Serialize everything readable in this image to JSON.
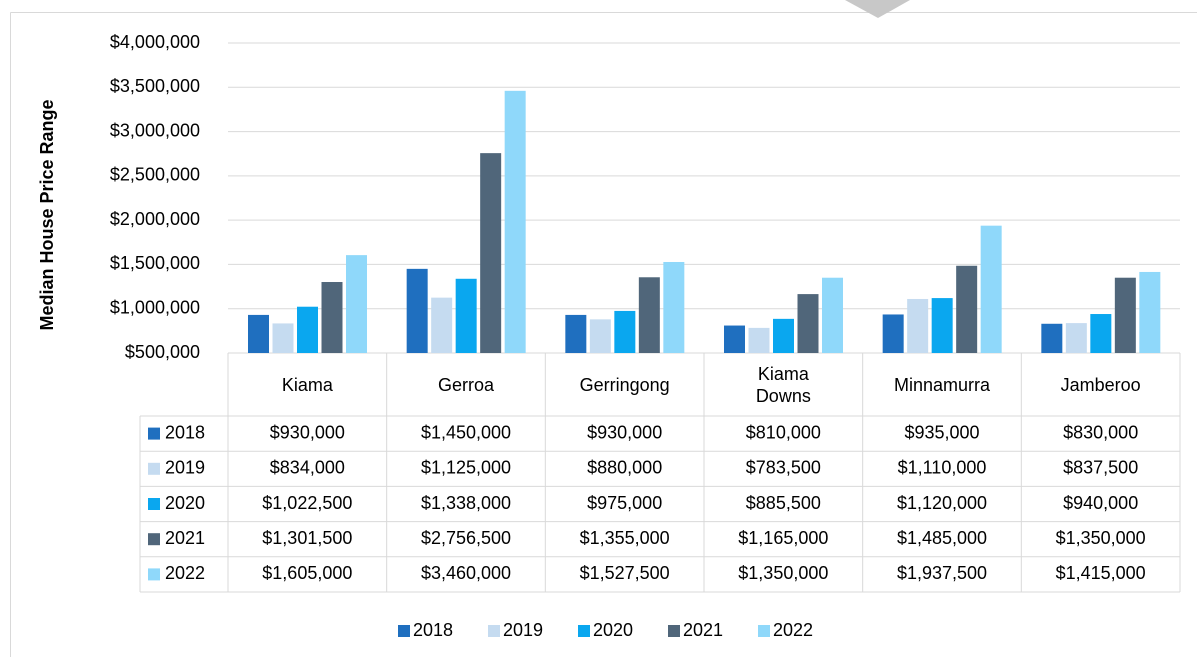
{
  "chart_data": {
    "type": "bar",
    "y_axis_label": "Median House Price Range",
    "categories": [
      "Kiama",
      "Gerroa",
      "Gerringong",
      "Kiama Downs",
      "Minnamurra",
      "Jamberoo"
    ],
    "ylim": [
      500000,
      4000000
    ],
    "yticks": [
      {
        "value": 500000,
        "label": "$500,000"
      },
      {
        "value": 1000000,
        "label": "$1,000,000"
      },
      {
        "value": 1500000,
        "label": "$1,500,000"
      },
      {
        "value": 2000000,
        "label": "$2,000,000"
      },
      {
        "value": 2500000,
        "label": "$2,500,000"
      },
      {
        "value": 3000000,
        "label": "$3,000,000"
      },
      {
        "value": 3500000,
        "label": "$3,500,000"
      },
      {
        "value": 4000000,
        "label": "$4,000,000"
      }
    ],
    "grid": true,
    "legend": "bottom",
    "series": [
      {
        "name": "2018",
        "color": "#1f6fbf",
        "values": [
          930000,
          1450000,
          930000,
          810000,
          935000,
          830000
        ],
        "value_labels": [
          "$930,000",
          "$1,450,000",
          "$930,000",
          "$810,000",
          "$935,000",
          "$830,000"
        ]
      },
      {
        "name": "2019",
        "color": "#c5dbf0",
        "values": [
          834000,
          1125000,
          880000,
          783500,
          1110000,
          837500
        ],
        "value_labels": [
          "$834,000",
          "$1,125,000",
          "$880,000",
          "$783,500",
          "$1,110,000",
          "$837,500"
        ]
      },
      {
        "name": "2020",
        "color": "#0aa7ef",
        "values": [
          1022500,
          1338000,
          975000,
          885500,
          1120000,
          940000
        ],
        "value_labels": [
          "$1,022,500",
          "$1,338,000",
          "$975,000",
          "$885,500",
          "$1,120,000",
          "$940,000"
        ]
      },
      {
        "name": "2021",
        "color": "#50667a",
        "values": [
          1301500,
          2756500,
          1355000,
          1165000,
          1485000,
          1350000
        ],
        "value_labels": [
          "$1,301,500",
          "$2,756,500",
          "$1,355,000",
          "$1,165,000",
          "$1,485,000",
          "$1,350,000"
        ]
      },
      {
        "name": "2022",
        "color": "#8fd8fa",
        "values": [
          1605000,
          3460000,
          1527500,
          1350000,
          1937500,
          1415000
        ],
        "value_labels": [
          "$1,605,000",
          "$3,460,000",
          "$1,527,500",
          "$1,350,000",
          "$1,937,500",
          "$1,415,000"
        ]
      }
    ]
  }
}
